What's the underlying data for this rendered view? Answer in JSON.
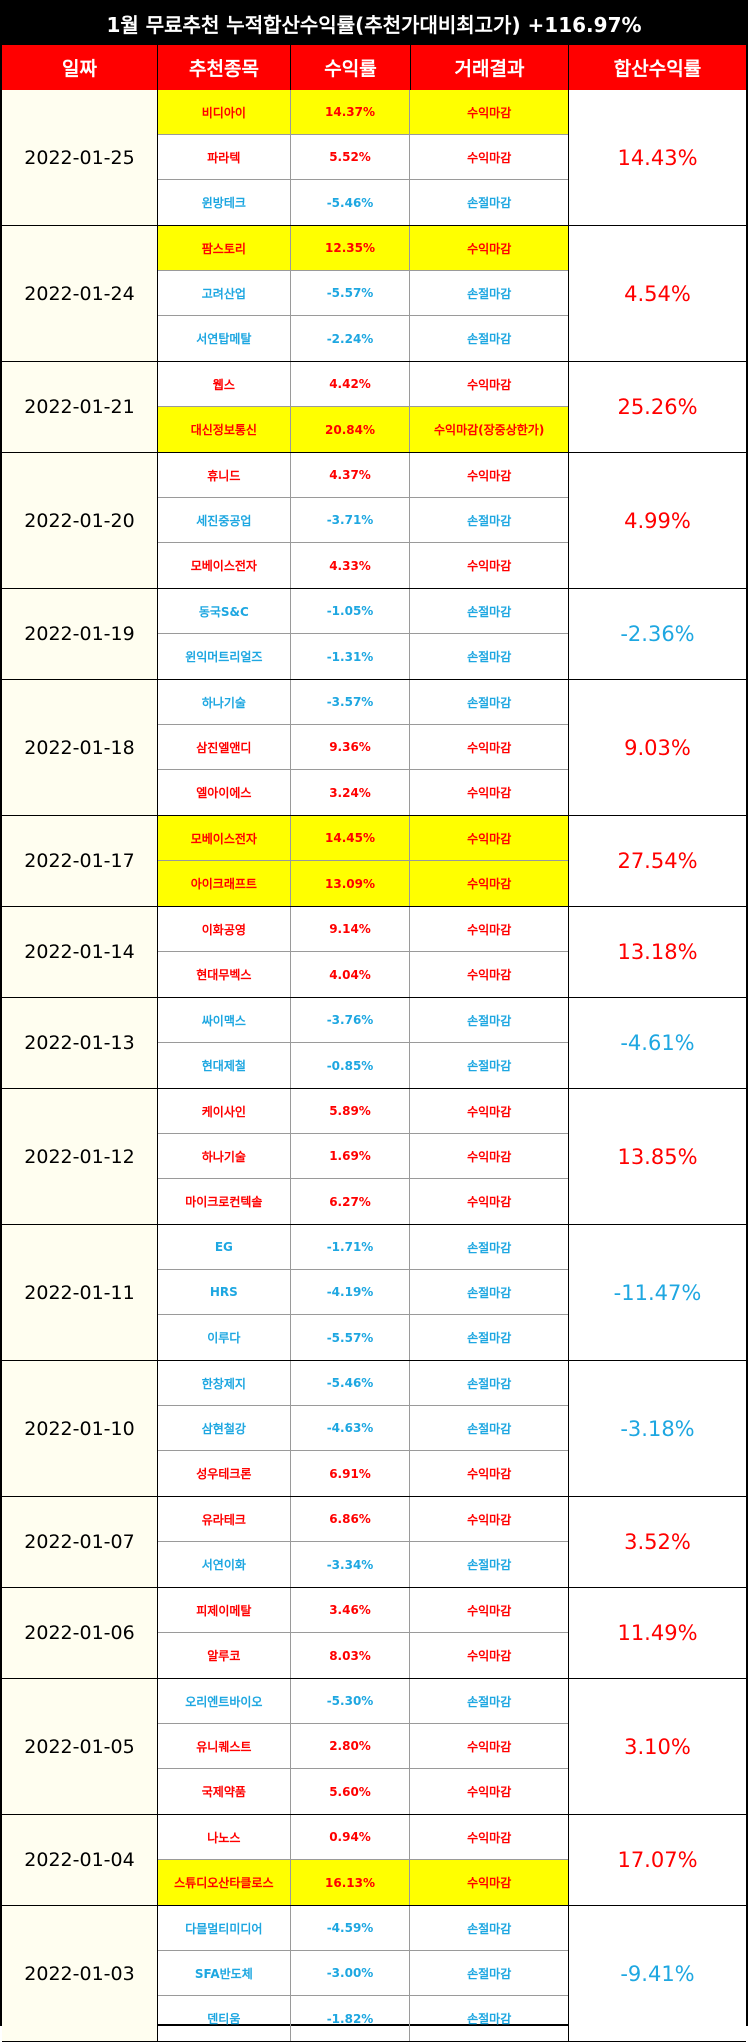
{
  "title": "1월 무료추천 누적합산수익률(추천가대비최고가) +116.97%",
  "headers": [
    "일짜",
    "추천종목",
    "수익률",
    "거래결과",
    "합산수익률"
  ],
  "colors": {
    "positive": "#ff0000",
    "negative": "#1ea7e1",
    "highlight": "#ffff00",
    "header": "#ff0000"
  },
  "groups": [
    {
      "date": "2022-01-25",
      "total": "14.43%",
      "total_sign": "pos",
      "rows": [
        {
          "stock": "비디아이",
          "ret": "14.37%",
          "result": "수익마감",
          "sign": "pos",
          "hl": true
        },
        {
          "stock": "파라텍",
          "ret": "5.52%",
          "result": "수익마감",
          "sign": "pos",
          "hl": false
        },
        {
          "stock": "윈방테크",
          "ret": "-5.46%",
          "result": "손절마감",
          "sign": "neg",
          "hl": false
        }
      ]
    },
    {
      "date": "2022-01-24",
      "total": "4.54%",
      "total_sign": "pos",
      "rows": [
        {
          "stock": "팜스토리",
          "ret": "12.35%",
          "result": "수익마감",
          "sign": "pos",
          "hl": true
        },
        {
          "stock": "고려산업",
          "ret": "-5.57%",
          "result": "손절마감",
          "sign": "neg",
          "hl": false
        },
        {
          "stock": "서연탑메탈",
          "ret": "-2.24%",
          "result": "손절마감",
          "sign": "neg",
          "hl": false
        }
      ]
    },
    {
      "date": "2022-01-21",
      "total": "25.26%",
      "total_sign": "pos",
      "rows": [
        {
          "stock": "웹스",
          "ret": "4.42%",
          "result": "수익마감",
          "sign": "pos",
          "hl": false
        },
        {
          "stock": "대신정보통신",
          "ret": "20.84%",
          "result": "수익마감(장중상한가)",
          "sign": "pos",
          "hl": true
        }
      ]
    },
    {
      "date": "2022-01-20",
      "total": "4.99%",
      "total_sign": "pos",
      "rows": [
        {
          "stock": "휴니드",
          "ret": "4.37%",
          "result": "수익마감",
          "sign": "pos",
          "hl": false
        },
        {
          "stock": "세진중공업",
          "ret": "-3.71%",
          "result": "손절마감",
          "sign": "neg",
          "hl": false
        },
        {
          "stock": "모베이스전자",
          "ret": "4.33%",
          "result": "수익마감",
          "sign": "pos",
          "hl": false
        }
      ]
    },
    {
      "date": "2022-01-19",
      "total": "-2.36%",
      "total_sign": "neg",
      "rows": [
        {
          "stock": "동국S&C",
          "ret": "-1.05%",
          "result": "손절마감",
          "sign": "neg",
          "hl": false
        },
        {
          "stock": "윈익머트리얼즈",
          "ret": "-1.31%",
          "result": "손절마감",
          "sign": "neg",
          "hl": false
        }
      ]
    },
    {
      "date": "2022-01-18",
      "total": "9.03%",
      "total_sign": "pos",
      "rows": [
        {
          "stock": "하나기술",
          "ret": "-3.57%",
          "result": "손절마감",
          "sign": "neg",
          "hl": false
        },
        {
          "stock": "삼진엘앤디",
          "ret": "9.36%",
          "result": "수익마감",
          "sign": "pos",
          "hl": false
        },
        {
          "stock": "엘아이에스",
          "ret": "3.24%",
          "result": "수익마감",
          "sign": "pos",
          "hl": false
        }
      ]
    },
    {
      "date": "2022-01-17",
      "total": "27.54%",
      "total_sign": "pos",
      "rows": [
        {
          "stock": "모베이스전자",
          "ret": "14.45%",
          "result": "수익마감",
          "sign": "pos",
          "hl": true
        },
        {
          "stock": "아이크래프트",
          "ret": "13.09%",
          "result": "수익마감",
          "sign": "pos",
          "hl": true
        }
      ]
    },
    {
      "date": "2022-01-14",
      "total": "13.18%",
      "total_sign": "pos",
      "rows": [
        {
          "stock": "이화공영",
          "ret": "9.14%",
          "result": "수익마감",
          "sign": "pos",
          "hl": false
        },
        {
          "stock": "현대무벡스",
          "ret": "4.04%",
          "result": "수익마감",
          "sign": "pos",
          "hl": false
        }
      ]
    },
    {
      "date": "2022-01-13",
      "total": "-4.61%",
      "total_sign": "neg",
      "rows": [
        {
          "stock": "싸이맥스",
          "ret": "-3.76%",
          "result": "손절마감",
          "sign": "neg",
          "hl": false
        },
        {
          "stock": "현대제철",
          "ret": "-0.85%",
          "result": "손절마감",
          "sign": "neg",
          "hl": false
        }
      ]
    },
    {
      "date": "2022-01-12",
      "total": "13.85%",
      "total_sign": "pos",
      "rows": [
        {
          "stock": "케이사인",
          "ret": "5.89%",
          "result": "수익마감",
          "sign": "pos",
          "hl": false
        },
        {
          "stock": "하나기술",
          "ret": "1.69%",
          "result": "수익마감",
          "sign": "pos",
          "hl": false
        },
        {
          "stock": "마이크로컨텍솔",
          "ret": "6.27%",
          "result": "수익마감",
          "sign": "pos",
          "hl": false
        }
      ]
    },
    {
      "date": "2022-01-11",
      "total": "-11.47%",
      "total_sign": "neg",
      "rows": [
        {
          "stock": "EG",
          "ret": "-1.71%",
          "result": "손절마감",
          "sign": "neg",
          "hl": false
        },
        {
          "stock": "HRS",
          "ret": "-4.19%",
          "result": "손절마감",
          "sign": "neg",
          "hl": false
        },
        {
          "stock": "이루다",
          "ret": "-5.57%",
          "result": "손절마감",
          "sign": "neg",
          "hl": false
        }
      ]
    },
    {
      "date": "2022-01-10",
      "total": "-3.18%",
      "total_sign": "neg",
      "rows": [
        {
          "stock": "한창제지",
          "ret": "-5.46%",
          "result": "손절마감",
          "sign": "neg",
          "hl": false
        },
        {
          "stock": "삼현철강",
          "ret": "-4.63%",
          "result": "손절마감",
          "sign": "neg",
          "hl": false
        },
        {
          "stock": "성우테크론",
          "ret": "6.91%",
          "result": "수익마감",
          "sign": "pos",
          "hl": false
        }
      ]
    },
    {
      "date": "2022-01-07",
      "total": "3.52%",
      "total_sign": "pos",
      "rows": [
        {
          "stock": "유라테크",
          "ret": "6.86%",
          "result": "수익마감",
          "sign": "pos",
          "hl": false
        },
        {
          "stock": "서연이화",
          "ret": "-3.34%",
          "result": "손절마감",
          "sign": "neg",
          "hl": false
        }
      ]
    },
    {
      "date": "2022-01-06",
      "total": "11.49%",
      "total_sign": "pos",
      "rows": [
        {
          "stock": "피제이메탈",
          "ret": "3.46%",
          "result": "수익마감",
          "sign": "pos",
          "hl": false
        },
        {
          "stock": "알루코",
          "ret": "8.03%",
          "result": "수익마감",
          "sign": "pos",
          "hl": false
        }
      ]
    },
    {
      "date": "2022-01-05",
      "total": "3.10%",
      "total_sign": "pos",
      "rows": [
        {
          "stock": "오리엔트바이오",
          "ret": "-5.30%",
          "result": "손절마감",
          "sign": "neg",
          "hl": false
        },
        {
          "stock": "유니퀘스트",
          "ret": "2.80%",
          "result": "수익마감",
          "sign": "pos",
          "hl": false
        },
        {
          "stock": "국제약품",
          "ret": "5.60%",
          "result": "수익마감",
          "sign": "pos",
          "hl": false
        }
      ]
    },
    {
      "date": "2022-01-04",
      "total": "17.07%",
      "total_sign": "pos",
      "rows": [
        {
          "stock": "나노스",
          "ret": "0.94%",
          "result": "수익마감",
          "sign": "pos",
          "hl": false
        },
        {
          "stock": "스튜디오산타클로스",
          "ret": "16.13%",
          "result": "수익마감",
          "sign": "pos",
          "hl": true
        }
      ]
    },
    {
      "date": "2022-01-03",
      "total": "-9.41%",
      "total_sign": "neg",
      "rows": [
        {
          "stock": "다믈멀티미디어",
          "ret": "-4.59%",
          "result": "손절마감",
          "sign": "neg",
          "hl": false
        },
        {
          "stock": "SFA반도체",
          "ret": "-3.00%",
          "result": "손절마감",
          "sign": "neg",
          "hl": false
        },
        {
          "stock": "덴티움",
          "ret": "-1.82%",
          "result": "손절마감",
          "sign": "neg",
          "hl": false
        }
      ]
    }
  ]
}
